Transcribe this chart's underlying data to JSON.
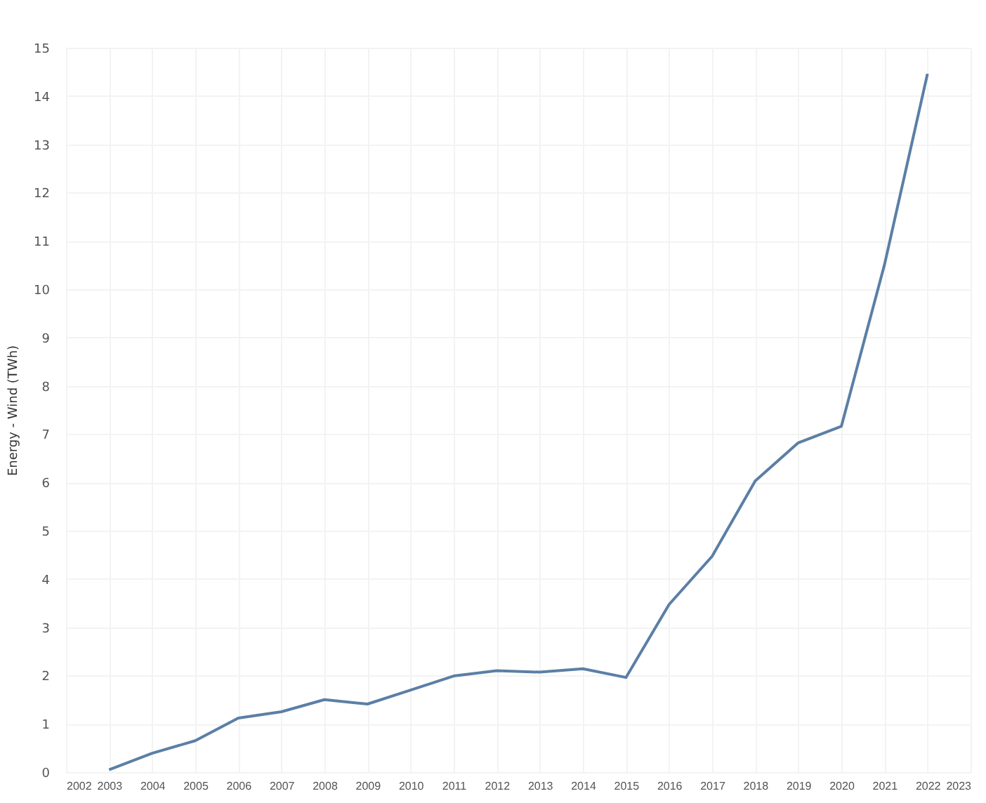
{
  "chart_data": {
    "type": "line",
    "ylabel": "Energy - Wind (TWh)",
    "x": [
      2003,
      2004,
      2005,
      2006,
      2007,
      2008,
      2009,
      2010,
      2011,
      2012,
      2013,
      2014,
      2015,
      2016,
      2017,
      2018,
      2019,
      2020,
      2021,
      2022
    ],
    "series": [
      {
        "color": "#5b7fa6",
        "values": [
          0.05,
          0.39,
          0.65,
          1.12,
          1.25,
          1.5,
          1.41,
          1.7,
          1.99,
          2.1,
          2.07,
          2.14,
          1.96,
          3.47,
          4.47,
          6.03,
          6.82,
          7.16,
          10.5,
          14.46
        ]
      }
    ],
    "xlim": [
      2002,
      2023
    ],
    "xticks": [
      2002,
      2003,
      2004,
      2005,
      2006,
      2007,
      2008,
      2009,
      2010,
      2011,
      2012,
      2013,
      2014,
      2015,
      2016,
      2017,
      2018,
      2019,
      2020,
      2021,
      2022,
      2023
    ],
    "ylim": [
      0,
      15
    ],
    "yticks": [
      0,
      1,
      2,
      3,
      4,
      5,
      6,
      7,
      8,
      9,
      10,
      11,
      12,
      13,
      14,
      15
    ],
    "grid": true,
    "marker": "none",
    "line_style": "solid"
  }
}
